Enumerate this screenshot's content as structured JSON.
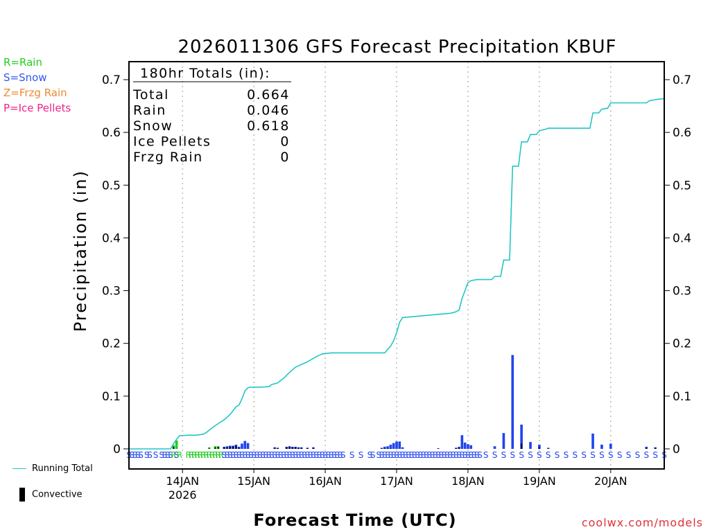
{
  "chart_data": {
    "type": "bar+line",
    "title": "2026011306 GFS Forecast Precipitation KBUF",
    "xlabel": "Forecast Time (UTC)",
    "ylabel": "Precipitation (in)",
    "ylim": [
      0,
      0.72
    ],
    "xlim_hours": [
      0,
      180
    ],
    "y_ticks": [
      0,
      0.1,
      0.2,
      0.3,
      0.4,
      0.5,
      0.6,
      0.7
    ],
    "y_tick_labels": [
      "0",
      "0.1",
      "0.2",
      "0.3",
      "0.4",
      "0.5",
      "0.6",
      "0.7"
    ],
    "x_ticks": [
      {
        "hour": 18,
        "label": "14JAN",
        "sub": "2026"
      },
      {
        "hour": 42,
        "label": "15JAN",
        "sub": ""
      },
      {
        "hour": 66,
        "label": "16JAN",
        "sub": ""
      },
      {
        "hour": 90,
        "label": "17JAN",
        "sub": ""
      },
      {
        "hour": 114,
        "label": "18JAN",
        "sub": ""
      },
      {
        "hour": 138,
        "label": "19JAN",
        "sub": ""
      },
      {
        "hour": 162,
        "label": "20JAN",
        "sub": ""
      }
    ],
    "totals_box": {
      "header": "180hr Totals (in):",
      "rows": [
        {
          "label": "Total",
          "value": "0.664"
        },
        {
          "label": "Rain",
          "value": "0.046"
        },
        {
          "label": "Snow",
          "value": "0.618"
        },
        {
          "label": "Ice Pellets",
          "value": "0"
        },
        {
          "label": "Frzg Rain",
          "value": "0"
        }
      ]
    },
    "precip_type_legend": [
      {
        "text": "R=Rain",
        "color": "#22cc22"
      },
      {
        "text": "S=Snow",
        "color": "#3355ee"
      },
      {
        "text": "Z=Frzg Rain",
        "color": "#ee8833"
      },
      {
        "text": "P=Ice Pellets",
        "color": "#ee2288"
      }
    ],
    "line_legend": "Running Total",
    "bar_legend": "Convective",
    "colors": {
      "rain": "#22cc22",
      "snow": "#2244ee",
      "running_total": "#22c5c5",
      "convective": "#000000",
      "axis": "#000000",
      "grid": "#999999"
    },
    "running_total": [
      [
        0,
        0
      ],
      [
        14,
        0
      ],
      [
        15,
        0.01
      ],
      [
        16,
        0.018
      ],
      [
        17,
        0.025
      ],
      [
        20,
        0.026
      ],
      [
        23,
        0.026
      ],
      [
        25,
        0.028
      ],
      [
        26,
        0.031
      ],
      [
        28,
        0.04
      ],
      [
        30,
        0.048
      ],
      [
        32,
        0.055
      ],
      [
        34,
        0.065
      ],
      [
        36,
        0.08
      ],
      [
        37,
        0.083
      ],
      [
        38,
        0.095
      ],
      [
        39,
        0.11
      ],
      [
        40,
        0.116
      ],
      [
        41,
        0.117
      ],
      [
        44,
        0.117
      ],
      [
        47,
        0.118
      ],
      [
        48,
        0.122
      ],
      [
        50,
        0.125
      ],
      [
        52,
        0.134
      ],
      [
        54,
        0.145
      ],
      [
        56,
        0.155
      ],
      [
        60,
        0.165
      ],
      [
        63,
        0.175
      ],
      [
        65,
        0.18
      ],
      [
        68,
        0.182
      ],
      [
        86,
        0.182
      ],
      [
        88,
        0.195
      ],
      [
        89,
        0.205
      ],
      [
        90,
        0.22
      ],
      [
        91,
        0.24
      ],
      [
        92,
        0.249
      ],
      [
        96,
        0.251
      ],
      [
        102,
        0.254
      ],
      [
        108,
        0.257
      ],
      [
        110,
        0.26
      ],
      [
        111,
        0.263
      ],
      [
        112,
        0.285
      ],
      [
        113,
        0.3
      ],
      [
        114,
        0.315
      ],
      [
        115,
        0.319
      ],
      [
        117,
        0.321
      ],
      [
        122,
        0.321
      ],
      [
        123,
        0.327
      ],
      [
        125,
        0.327
      ],
      [
        126,
        0.358
      ],
      [
        128,
        0.358
      ],
      [
        129,
        0.536
      ],
      [
        131,
        0.536
      ],
      [
        132,
        0.582
      ],
      [
        134,
        0.582
      ],
      [
        135,
        0.596
      ],
      [
        137,
        0.596
      ],
      [
        138,
        0.603
      ],
      [
        140,
        0.606
      ],
      [
        141,
        0.608
      ],
      [
        155,
        0.608
      ],
      [
        156,
        0.637
      ],
      [
        158,
        0.637
      ],
      [
        159,
        0.644
      ],
      [
        161,
        0.646
      ],
      [
        162,
        0.656
      ],
      [
        174,
        0.656
      ],
      [
        175,
        0.66
      ],
      [
        178,
        0.663
      ],
      [
        180,
        0.664
      ]
    ],
    "bars": [
      {
        "hour": 15,
        "value": 0.007,
        "conv": 0.004,
        "type": "rain"
      },
      {
        "hour": 16,
        "value": 0.016,
        "conv": 0.0,
        "type": "rain"
      },
      {
        "hour": 27,
        "value": 0.003,
        "conv": 0.001,
        "type": "rain"
      },
      {
        "hour": 29,
        "value": 0.005,
        "conv": 0.003,
        "type": "rain"
      },
      {
        "hour": 30,
        "value": 0.005,
        "conv": 0.004,
        "type": "rain"
      },
      {
        "hour": 32,
        "value": 0.004,
        "conv": 0.003,
        "type": "snow"
      },
      {
        "hour": 33,
        "value": 0.005,
        "conv": 0.003,
        "type": "snow"
      },
      {
        "hour": 34,
        "value": 0.006,
        "conv": 0.004,
        "type": "snow"
      },
      {
        "hour": 35,
        "value": 0.006,
        "conv": 0.005,
        "type": "snow"
      },
      {
        "hour": 36,
        "value": 0.008,
        "conv": 0.006,
        "type": "snow"
      },
      {
        "hour": 37,
        "value": 0.004,
        "conv": 0.002,
        "type": "snow"
      },
      {
        "hour": 38,
        "value": 0.01,
        "conv": 0.0,
        "type": "snow"
      },
      {
        "hour": 39,
        "value": 0.015,
        "conv": 0.0,
        "type": "snow"
      },
      {
        "hour": 40,
        "value": 0.011,
        "conv": 0.0,
        "type": "snow"
      },
      {
        "hour": 49,
        "value": 0.003,
        "conv": 0.002,
        "type": "snow"
      },
      {
        "hour": 50,
        "value": 0.002,
        "conv": 0.002,
        "type": "snow"
      },
      {
        "hour": 53,
        "value": 0.004,
        "conv": 0.003,
        "type": "snow"
      },
      {
        "hour": 54,
        "value": 0.005,
        "conv": 0.004,
        "type": "snow"
      },
      {
        "hour": 55,
        "value": 0.004,
        "conv": 0.003,
        "type": "snow"
      },
      {
        "hour": 56,
        "value": 0.004,
        "conv": 0.003,
        "type": "snow"
      },
      {
        "hour": 57,
        "value": 0.003,
        "conv": 0.002,
        "type": "snow"
      },
      {
        "hour": 58,
        "value": 0.003,
        "conv": 0.002,
        "type": "snow"
      },
      {
        "hour": 60,
        "value": 0.002,
        "conv": 0.002,
        "type": "snow"
      },
      {
        "hour": 62,
        "value": 0.003,
        "conv": 0.002,
        "type": "snow"
      },
      {
        "hour": 85,
        "value": 0.002,
        "conv": 0.001,
        "type": "snow"
      },
      {
        "hour": 86,
        "value": 0.004,
        "conv": 0.001,
        "type": "snow"
      },
      {
        "hour": 87,
        "value": 0.005,
        "conv": 0.001,
        "type": "snow"
      },
      {
        "hour": 88,
        "value": 0.008,
        "conv": 0.001,
        "type": "snow"
      },
      {
        "hour": 89,
        "value": 0.011,
        "conv": 0.0,
        "type": "snow"
      },
      {
        "hour": 90,
        "value": 0.014,
        "conv": 0.0,
        "type": "snow"
      },
      {
        "hour": 91,
        "value": 0.014,
        "conv": 0.0,
        "type": "snow"
      },
      {
        "hour": 92,
        "value": 0.003,
        "conv": 0.0,
        "type": "snow"
      },
      {
        "hour": 104,
        "value": 0.001,
        "conv": 0.001,
        "type": "snow"
      },
      {
        "hour": 110,
        "value": 0.002,
        "conv": 0.002,
        "type": "snow"
      },
      {
        "hour": 111,
        "value": 0.004,
        "conv": 0.002,
        "type": "snow"
      },
      {
        "hour": 112,
        "value": 0.026,
        "conv": 0.0,
        "type": "snow"
      },
      {
        "hour": 113,
        "value": 0.012,
        "conv": 0.0,
        "type": "snow"
      },
      {
        "hour": 114,
        "value": 0.009,
        "conv": 0.0,
        "type": "snow"
      },
      {
        "hour": 115,
        "value": 0.007,
        "conv": 0.0,
        "type": "snow"
      },
      {
        "hour": 123,
        "value": 0.005,
        "conv": 0.0,
        "type": "snow"
      },
      {
        "hour": 126,
        "value": 0.03,
        "conv": 0.0,
        "type": "snow"
      },
      {
        "hour": 129,
        "value": 0.178,
        "conv": 0.0,
        "type": "snow"
      },
      {
        "hour": 132,
        "value": 0.046,
        "conv": 0.01,
        "type": "snow"
      },
      {
        "hour": 135,
        "value": 0.013,
        "conv": 0.0,
        "type": "snow"
      },
      {
        "hour": 138,
        "value": 0.008,
        "conv": 0.003,
        "type": "snow"
      },
      {
        "hour": 141,
        "value": 0.002,
        "conv": 0.001,
        "type": "snow"
      },
      {
        "hour": 156,
        "value": 0.029,
        "conv": 0.0,
        "type": "snow"
      },
      {
        "hour": 159,
        "value": 0.008,
        "conv": 0.0,
        "type": "snow"
      },
      {
        "hour": 162,
        "value": 0.01,
        "conv": 0.0,
        "type": "snow"
      },
      {
        "hour": 174,
        "value": 0.004,
        "conv": 0.002,
        "type": "snow"
      },
      {
        "hour": 177,
        "value": 0.003,
        "conv": 0.002,
        "type": "snow"
      }
    ],
    "type_marks": [
      {
        "hour": 0,
        "t": "S"
      },
      {
        "hour": 1,
        "t": "S"
      },
      {
        "hour": 2,
        "t": "S"
      },
      {
        "hour": 3,
        "t": "S"
      },
      {
        "hour": 4,
        "t": "S"
      },
      {
        "hour": 6,
        "t": "S"
      },
      {
        "hour": 7,
        "t": "S"
      },
      {
        "hour": 9,
        "t": "S"
      },
      {
        "hour": 11,
        "t": "S"
      },
      {
        "hour": 12,
        "t": "S"
      },
      {
        "hour": 13,
        "t": "S"
      },
      {
        "hour": 14,
        "t": "S"
      },
      {
        "hour": 15,
        "t": "R"
      },
      {
        "hour": 16,
        "t": "S"
      },
      {
        "hour": 17,
        "t": "R"
      },
      {
        "hour": 20,
        "t": "R"
      },
      {
        "hour": 21,
        "t": "R"
      },
      {
        "hour": 22,
        "t": "R"
      },
      {
        "hour": 23,
        "t": "R"
      },
      {
        "hour": 24,
        "t": "R"
      },
      {
        "hour": 25,
        "t": "R"
      },
      {
        "hour": 26,
        "t": "R"
      },
      {
        "hour": 27,
        "t": "R"
      },
      {
        "hour": 28,
        "t": "R"
      },
      {
        "hour": 29,
        "t": "R"
      },
      {
        "hour": 30,
        "t": "R"
      },
      {
        "hour": 31,
        "t": "R"
      },
      {
        "hour": 32,
        "t": "S"
      },
      {
        "hour": 33,
        "t": "S"
      },
      {
        "hour": 34,
        "t": "S"
      },
      {
        "hour": 35,
        "t": "S"
      },
      {
        "hour": 36,
        "t": "S"
      },
      {
        "hour": 37,
        "t": "S"
      },
      {
        "hour": 38,
        "t": "S"
      },
      {
        "hour": 39,
        "t": "S"
      },
      {
        "hour": 40,
        "t": "S"
      },
      {
        "hour": 41,
        "t": "S"
      },
      {
        "hour": 42,
        "t": "S"
      },
      {
        "hour": 43,
        "t": "S"
      },
      {
        "hour": 44,
        "t": "S"
      },
      {
        "hour": 45,
        "t": "S"
      },
      {
        "hour": 46,
        "t": "S"
      },
      {
        "hour": 47,
        "t": "S"
      },
      {
        "hour": 48,
        "t": "S"
      },
      {
        "hour": 49,
        "t": "S"
      },
      {
        "hour": 50,
        "t": "S"
      },
      {
        "hour": 51,
        "t": "S"
      },
      {
        "hour": 52,
        "t": "S"
      },
      {
        "hour": 53,
        "t": "S"
      },
      {
        "hour": 54,
        "t": "S"
      },
      {
        "hour": 55,
        "t": "S"
      },
      {
        "hour": 56,
        "t": "S"
      },
      {
        "hour": 57,
        "t": "S"
      },
      {
        "hour": 58,
        "t": "S"
      },
      {
        "hour": 59,
        "t": "S"
      },
      {
        "hour": 60,
        "t": "S"
      },
      {
        "hour": 61,
        "t": "S"
      },
      {
        "hour": 62,
        "t": "S"
      },
      {
        "hour": 63,
        "t": "S"
      },
      {
        "hour": 64,
        "t": "S"
      },
      {
        "hour": 65,
        "t": "S"
      },
      {
        "hour": 66,
        "t": "S"
      },
      {
        "hour": 67,
        "t": "S"
      },
      {
        "hour": 68,
        "t": "S"
      },
      {
        "hour": 69,
        "t": "S"
      },
      {
        "hour": 70,
        "t": "S"
      },
      {
        "hour": 71,
        "t": "S"
      },
      {
        "hour": 72,
        "t": "S"
      },
      {
        "hour": 75,
        "t": "S"
      },
      {
        "hour": 78,
        "t": "S"
      },
      {
        "hour": 81,
        "t": "S"
      },
      {
        "hour": 82,
        "t": "S"
      },
      {
        "hour": 84,
        "t": "S"
      },
      {
        "hour": 85,
        "t": "S"
      },
      {
        "hour": 86,
        "t": "S"
      },
      {
        "hour": 87,
        "t": "S"
      },
      {
        "hour": 88,
        "t": "S"
      },
      {
        "hour": 89,
        "t": "S"
      },
      {
        "hour": 90,
        "t": "S"
      },
      {
        "hour": 91,
        "t": "S"
      },
      {
        "hour": 92,
        "t": "S"
      },
      {
        "hour": 93,
        "t": "S"
      },
      {
        "hour": 94,
        "t": "S"
      },
      {
        "hour": 95,
        "t": "S"
      },
      {
        "hour": 96,
        "t": "S"
      },
      {
        "hour": 97,
        "t": "S"
      },
      {
        "hour": 98,
        "t": "S"
      },
      {
        "hour": 99,
        "t": "S"
      },
      {
        "hour": 100,
        "t": "S"
      },
      {
        "hour": 101,
        "t": "S"
      },
      {
        "hour": 102,
        "t": "S"
      },
      {
        "hour": 103,
        "t": "S"
      },
      {
        "hour": 104,
        "t": "S"
      },
      {
        "hour": 105,
        "t": "S"
      },
      {
        "hour": 106,
        "t": "S"
      },
      {
        "hour": 107,
        "t": "S"
      },
      {
        "hour": 108,
        "t": "S"
      },
      {
        "hour": 109,
        "t": "S"
      },
      {
        "hour": 110,
        "t": "S"
      },
      {
        "hour": 111,
        "t": "S"
      },
      {
        "hour": 112,
        "t": "S"
      },
      {
        "hour": 113,
        "t": "S"
      },
      {
        "hour": 114,
        "t": "S"
      },
      {
        "hour": 115,
        "t": "S"
      },
      {
        "hour": 116,
        "t": "S"
      },
      {
        "hour": 117,
        "t": "S"
      },
      {
        "hour": 118,
        "t": "S"
      },
      {
        "hour": 120,
        "t": "S"
      },
      {
        "hour": 123,
        "t": "S"
      },
      {
        "hour": 126,
        "t": "S"
      },
      {
        "hour": 129,
        "t": "S"
      },
      {
        "hour": 132,
        "t": "S"
      },
      {
        "hour": 135,
        "t": "S"
      },
      {
        "hour": 138,
        "t": "S"
      },
      {
        "hour": 141,
        "t": "S"
      },
      {
        "hour": 144,
        "t": "S"
      },
      {
        "hour": 147,
        "t": "S"
      },
      {
        "hour": 150,
        "t": "S"
      },
      {
        "hour": 153,
        "t": "S"
      },
      {
        "hour": 156,
        "t": "S"
      },
      {
        "hour": 159,
        "t": "S"
      },
      {
        "hour": 162,
        "t": "S"
      },
      {
        "hour": 165,
        "t": "S"
      },
      {
        "hour": 168,
        "t": "S"
      },
      {
        "hour": 171,
        "t": "S"
      },
      {
        "hour": 174,
        "t": "S"
      },
      {
        "hour": 177,
        "t": "S"
      },
      {
        "hour": 180,
        "t": "S"
      }
    ],
    "credit": "coolwx.com/models"
  }
}
